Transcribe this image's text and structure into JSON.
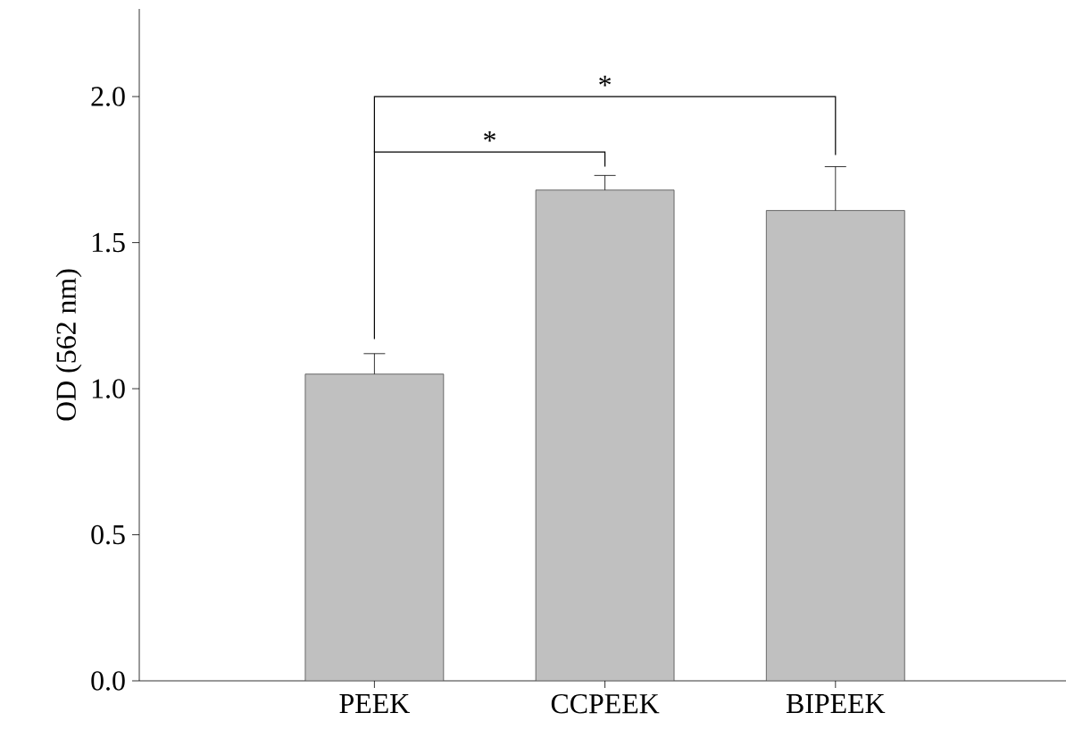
{
  "chart_data": {
    "type": "bar",
    "ylabel": "OD (562 nm)",
    "categories": [
      "PEEK",
      "CCPEEK",
      "BIPEEK"
    ],
    "values": [
      1.05,
      1.68,
      1.61
    ],
    "errors": [
      [
        1.05,
        1.12
      ],
      [
        1.68,
        1.73
      ],
      [
        1.61,
        1.76
      ]
    ],
    "color": "#c0c0c0",
    "ylim": [
      0,
      2.3
    ],
    "yticks": [
      {
        "value": 0,
        "label": "0.0"
      },
      {
        "value": 0.5,
        "label": "0.5"
      },
      {
        "value": 1,
        "label": "1.0"
      },
      {
        "value": 1.5,
        "label": "1.5"
      },
      {
        "value": 2,
        "label": "2.0"
      }
    ],
    "annotations": [
      "*",
      "*"
    ],
    "grid": false
  }
}
